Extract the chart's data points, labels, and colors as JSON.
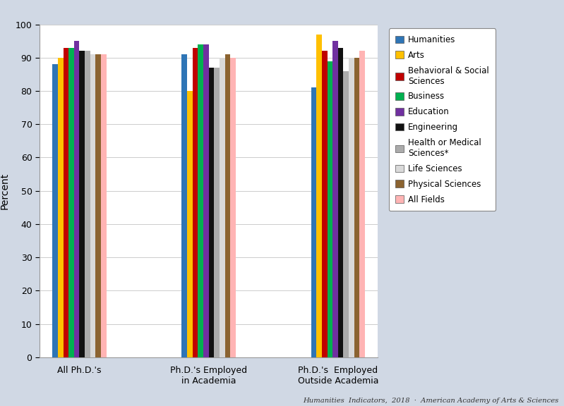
{
  "categories": [
    "All Ph.D.'s",
    "Ph.D.'s Employed\nin Academia",
    "Ph.D.'s  Employed\nOutside Academia"
  ],
  "series": [
    {
      "label": "Humanities",
      "color": "#2E75B6",
      "values": [
        88,
        91,
        81
      ]
    },
    {
      "label": "Arts",
      "color": "#FFC000",
      "values": [
        90,
        80,
        97
      ]
    },
    {
      "label": "Behavioral & Social\nSciences",
      "color": "#C00000",
      "values": [
        93,
        93,
        92
      ]
    },
    {
      "label": "Business",
      "color": "#00B050",
      "values": [
        93,
        94,
        89
      ]
    },
    {
      "label": "Education",
      "color": "#7030A0",
      "values": [
        95,
        94,
        95
      ]
    },
    {
      "label": "Engineering",
      "color": "#111111",
      "values": [
        92,
        87,
        93
      ]
    },
    {
      "label": "Health or Medical\nSciences*",
      "color": "#ABABAB",
      "values": [
        92,
        87,
        86
      ]
    },
    {
      "label": "Life Sciences",
      "color": "#D9D9D9",
      "values": [
        91,
        90,
        90
      ]
    },
    {
      "label": "Physical Sciences",
      "color": "#8B6330",
      "values": [
        91,
        91,
        90
      ]
    },
    {
      "label": "All Fields",
      "color": "#FFB4B4",
      "values": [
        91,
        90,
        92
      ]
    }
  ],
  "ylabel": "Percent",
  "ylim": [
    0,
    100
  ],
  "yticks": [
    0,
    10,
    20,
    30,
    40,
    50,
    60,
    70,
    80,
    90,
    100
  ],
  "background_color": "#D0D8E4",
  "plot_background_color": "#FFFFFF",
  "footer": "Humanities  Indicators,  2018  ·  American Academy of Arts & Sciences",
  "bar_width": 0.05,
  "group_width": 0.7,
  "group_positions": [
    1.0,
    2.2,
    3.4
  ]
}
